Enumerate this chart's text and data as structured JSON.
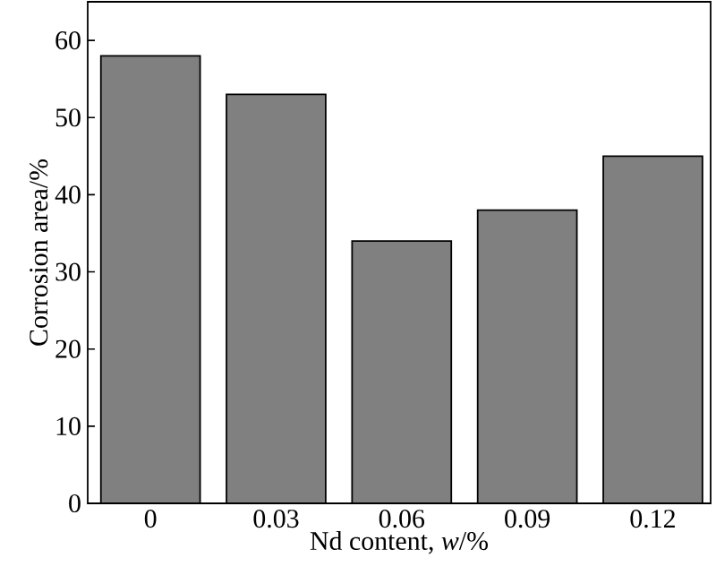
{
  "chart_data": {
    "type": "bar",
    "xlabel": "Nd content, *w*/%",
    "ylabel": "Corrosion area/%",
    "categories": [
      "0",
      "0.03",
      "0.06",
      "0.09",
      "0.12"
    ],
    "values": [
      58,
      53,
      34,
      38,
      45
    ],
    "color": "#808080",
    "ylim": [
      0,
      65
    ],
    "yticks": [
      0,
      10,
      20,
      30,
      40,
      50,
      60
    ]
  }
}
